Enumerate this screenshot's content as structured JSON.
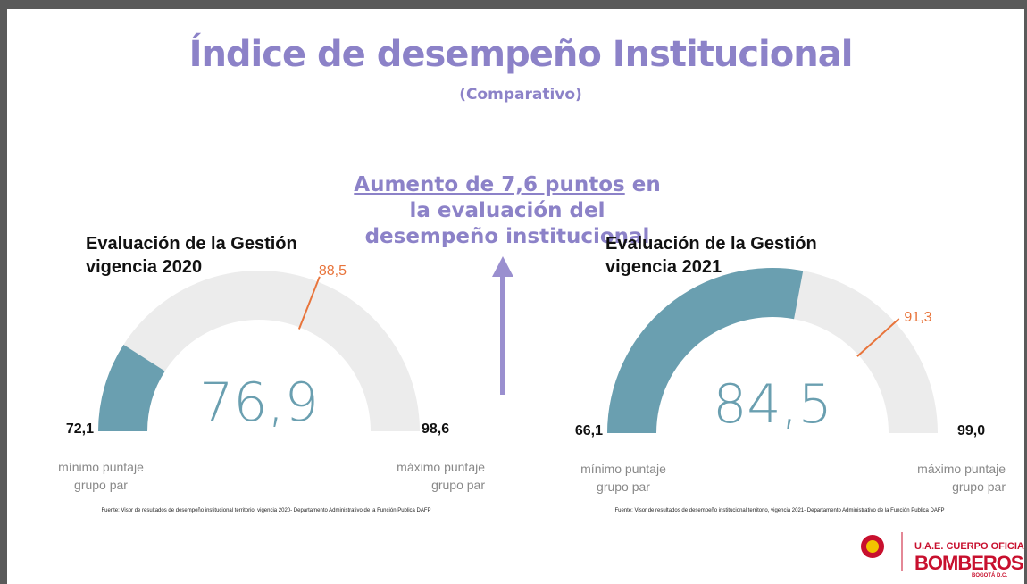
{
  "header": {
    "title": "Índice de desempeño Institucional",
    "subtitle": "(Comparativo)",
    "annotation": {
      "highlight": "Aumento de 7,6 puntos",
      "text": "en la evaluación del desempeño institucional"
    }
  },
  "chart_data": [
    {
      "type": "gauge",
      "title": "Evaluación de la Gestión vigencia 2020",
      "range": [
        {
          "value": 72.1,
          "label": "72,1"
        },
        {
          "value": 98.6,
          "label": "98,6"
        }
      ],
      "value": 76.9,
      "value_label": "76,9",
      "reference": {
        "value": 88.5,
        "label": "88,5"
      },
      "range_captions": [
        "mínimo puntaje grupo par",
        "máximo puntaje grupo par"
      ],
      "source": "Fuente: Visor de resultados de desempeño institucional territorio, vigencia 2020- Departamento Administrativo de la Función Publica DAFP",
      "color": "#6a9fb0",
      "track_color": "#ececec",
      "reference_color": "#e8743b"
    },
    {
      "type": "gauge",
      "title": "Evaluación de la Gestión vigencia 2021",
      "range": [
        {
          "value": 66.1,
          "label": "66,1"
        },
        {
          "value": 99.0,
          "label": "99,0"
        }
      ],
      "value": 84.5,
      "value_label": "84,5",
      "reference": {
        "value": 91.3,
        "label": "91,3"
      },
      "range_captions": [
        "mínimo puntaje grupo par",
        "máximo puntaje grupo par"
      ],
      "source": "Fuente: Visor de resultados de desempeño institucional territorio, vigencia 2021- Departamento Administrativo de la Función Publica DAFP",
      "color": "#6a9fb0",
      "track_color": "#ececec",
      "reference_color": "#e8743b"
    }
  ],
  "logo": {
    "line1": "U.A.E. CUERPO OFICIAL",
    "line2": "BOMBEROS",
    "line3": "BOGOTÁ D.C."
  }
}
